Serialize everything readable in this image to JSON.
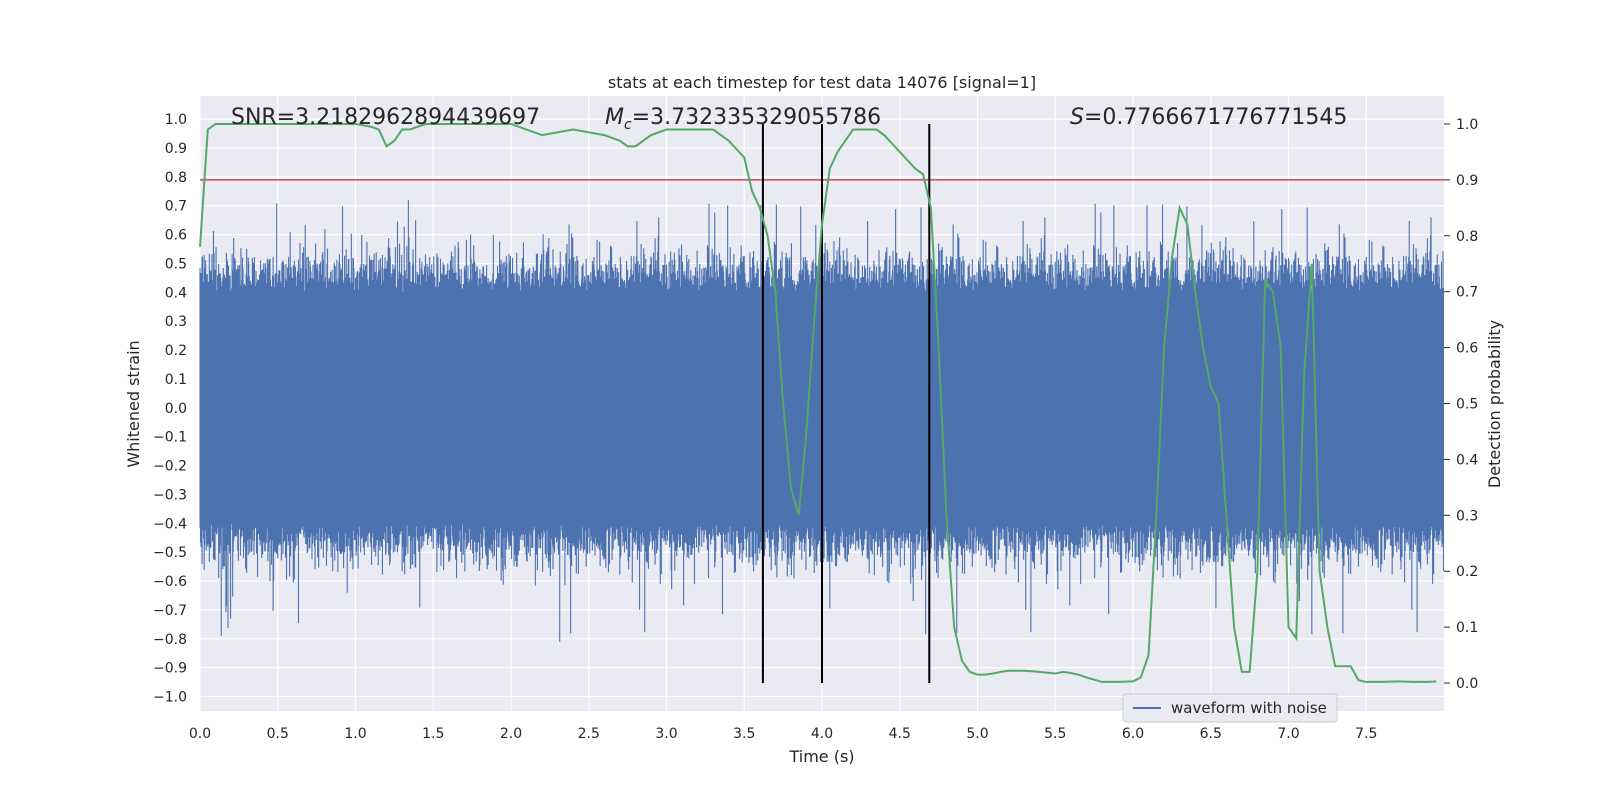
{
  "chart_data": {
    "type": "line",
    "title": "stats at each timestep for test data 14076 [signal=1]",
    "xlabel": "Time (s)",
    "ylabel": "Whitened strain",
    "ylabel_right": "Detection probability",
    "xlim": [
      0.0,
      8.0
    ],
    "ylim": [
      -1.05,
      1.08
    ],
    "ylim_right": [
      -0.05,
      1.05
    ],
    "x_ticks": [
      "0.0",
      "0.5",
      "1.0",
      "1.5",
      "2.0",
      "2.5",
      "3.0",
      "3.5",
      "4.0",
      "4.5",
      "5.0",
      "5.5",
      "6.0",
      "6.5",
      "7.0",
      "7.5"
    ],
    "x_tick_values": [
      0.0,
      0.5,
      1.0,
      1.5,
      2.0,
      2.5,
      3.0,
      3.5,
      4.0,
      4.5,
      5.0,
      5.5,
      6.0,
      6.5,
      7.0,
      7.5
    ],
    "y_ticks": [
      "1.0",
      "0.9",
      "0.8",
      "0.7",
      "0.6",
      "0.5",
      "0.4",
      "0.3",
      "0.2",
      "0.1",
      "0.0",
      "−0.1",
      "−0.2",
      "−0.3",
      "−0.4",
      "−0.5",
      "−0.6",
      "−0.7",
      "−0.8",
      "−0.9",
      "−1.0"
    ],
    "y_tick_values": [
      1.0,
      0.9,
      0.8,
      0.7,
      0.6,
      0.5,
      0.4,
      0.3,
      0.2,
      0.1,
      0.0,
      -0.1,
      -0.2,
      -0.3,
      -0.4,
      -0.5,
      -0.6,
      -0.7,
      -0.8,
      -0.9,
      -1.0
    ],
    "y_right_ticks": [
      "1.0",
      "0.9",
      "0.8",
      "0.7",
      "0.6",
      "0.5",
      "0.4",
      "0.3",
      "0.2",
      "0.1",
      "0.0"
    ],
    "y_right_tick_values": [
      1.0,
      0.9,
      0.8,
      0.7,
      0.6,
      0.5,
      0.4,
      0.3,
      0.2,
      0.1,
      0.0
    ],
    "annotations": {
      "snr": "SNR=3.2182962894439697",
      "mc_symbol": "M",
      "mc_subscript": "c",
      "mc_value": "=3.732335329055786",
      "s_symbol": "S",
      "s_value": "=0.7766671776771545"
    },
    "threshold": 0.9,
    "vertical_lines": [
      3.62,
      4.0,
      4.69
    ],
    "waveform": {
      "name": "waveform with noise",
      "color": "#4c72b0",
      "duration": 8.0,
      "typical_amplitude": 0.4
    },
    "detection_probability": {
      "color": "#55a868",
      "x": [
        0.0,
        0.05,
        0.1,
        0.15,
        0.25,
        0.5,
        0.75,
        1.0,
        1.1,
        1.15,
        1.2,
        1.25,
        1.3,
        1.35,
        1.4,
        1.45,
        1.5,
        1.75,
        2.0,
        2.1,
        2.2,
        2.4,
        2.6,
        2.7,
        2.75,
        2.8,
        2.9,
        3.0,
        3.1,
        3.3,
        3.4,
        3.5,
        3.55,
        3.6,
        3.65,
        3.7,
        3.75,
        3.8,
        3.85,
        3.9,
        3.95,
        4.0,
        4.05,
        4.1,
        4.15,
        4.2,
        4.25,
        4.3,
        4.35,
        4.4,
        4.5,
        4.6,
        4.65,
        4.7,
        4.75,
        4.8,
        4.85,
        4.9,
        4.95,
        5.0,
        5.05,
        5.1,
        5.15,
        5.2,
        5.3,
        5.4,
        5.5,
        5.55,
        5.6,
        5.65,
        5.7,
        5.8,
        5.9,
        6.0,
        6.05,
        6.1,
        6.15,
        6.2,
        6.25,
        6.3,
        6.35,
        6.4,
        6.45,
        6.5,
        6.55,
        6.6,
        6.65,
        6.7,
        6.75,
        6.8,
        6.85,
        6.9,
        6.95,
        7.0,
        7.05,
        7.1,
        7.15,
        7.2,
        7.25,
        7.3,
        7.35,
        7.4,
        7.45,
        7.5,
        7.6,
        7.7,
        7.8,
        7.9,
        7.95
      ],
      "y": [
        0.78,
        0.99,
        1.0,
        1.0,
        1.0,
        1.0,
        1.0,
        1.0,
        0.995,
        0.99,
        0.96,
        0.97,
        0.99,
        0.99,
        0.995,
        1.0,
        1.0,
        1.0,
        1.0,
        0.99,
        0.98,
        0.99,
        0.98,
        0.97,
        0.96,
        0.96,
        0.98,
        0.99,
        0.99,
        0.99,
        0.97,
        0.94,
        0.88,
        0.85,
        0.8,
        0.7,
        0.5,
        0.35,
        0.3,
        0.45,
        0.65,
        0.82,
        0.92,
        0.95,
        0.97,
        0.99,
        0.99,
        0.99,
        0.99,
        0.98,
        0.95,
        0.92,
        0.91,
        0.85,
        0.6,
        0.3,
        0.1,
        0.04,
        0.02,
        0.015,
        0.015,
        0.017,
        0.02,
        0.022,
        0.022,
        0.02,
        0.017,
        0.02,
        0.018,
        0.015,
        0.01,
        0.002,
        0.002,
        0.003,
        0.01,
        0.05,
        0.3,
        0.6,
        0.76,
        0.85,
        0.82,
        0.7,
        0.6,
        0.53,
        0.5,
        0.3,
        0.1,
        0.02,
        0.02,
        0.2,
        0.72,
        0.7,
        0.6,
        0.1,
        0.08,
        0.55,
        0.75,
        0.2,
        0.1,
        0.03,
        0.03,
        0.03,
        0.005,
        0.002,
        0.002,
        0.003,
        0.002,
        0.002,
        0.003
      ]
    },
    "legend": {
      "label": "waveform with noise",
      "location": "lower-right"
    },
    "colors": {
      "plot_background": "#eaeaf2",
      "grid": "#ffffff",
      "threshold_line": "#c44e52",
      "marker_lines": "#000000"
    }
  }
}
